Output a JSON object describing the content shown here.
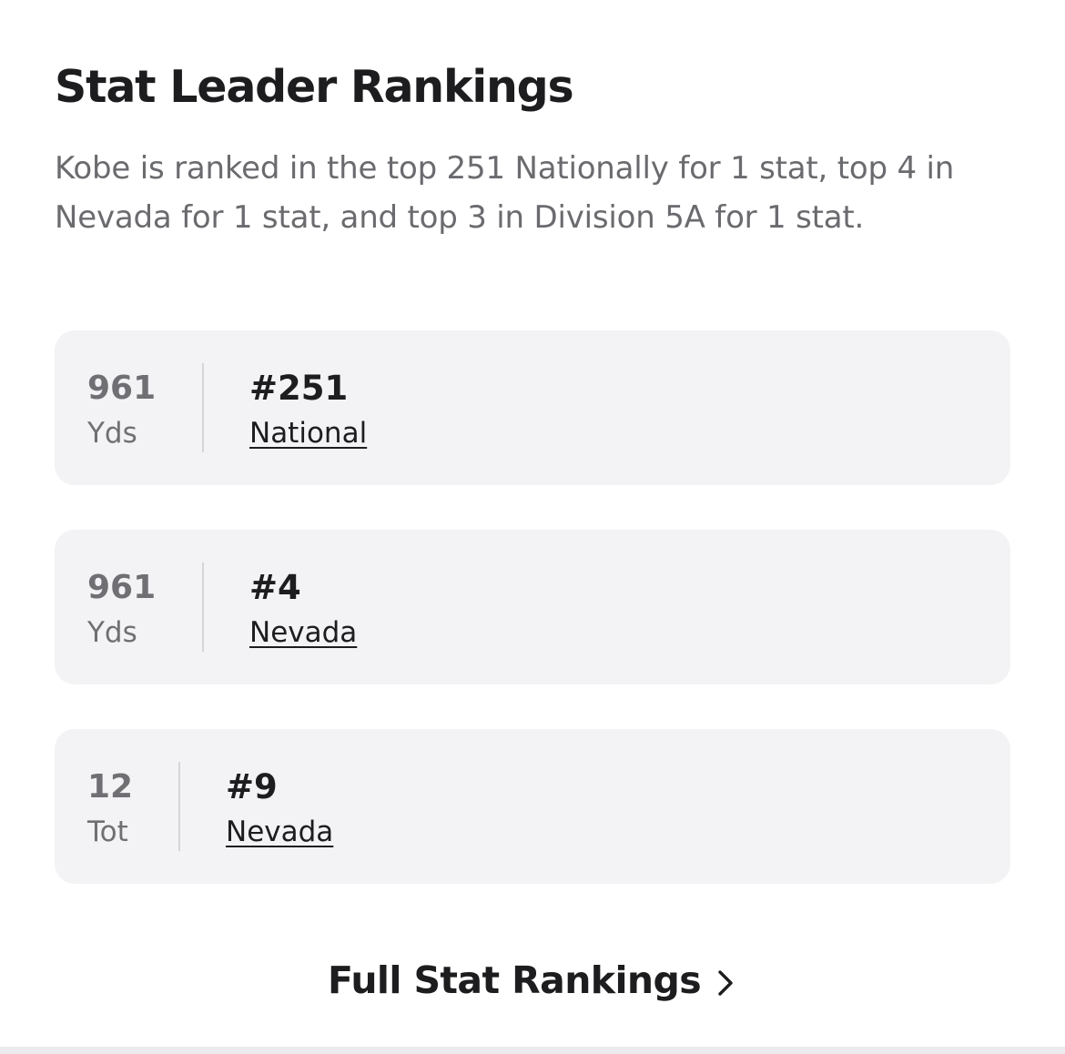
{
  "section": {
    "title": "Stat Leader Rankings",
    "description": "Kobe is ranked in the top 251 Nationally for 1 stat, top 4 in Nevada for 1 stat, and top 3 in Division 5A for 1 stat."
  },
  "rankings": [
    {
      "value": "961",
      "unit": "Yds",
      "rank": "#251",
      "scope": "National"
    },
    {
      "value": "961",
      "unit": "Yds",
      "rank": "#4",
      "scope": "Nevada"
    },
    {
      "value": "12",
      "unit": "Tot",
      "rank": "#9",
      "scope": "Nevada"
    }
  ],
  "footer": {
    "link_label": "Full Stat Rankings",
    "link_icon": "chevron-right-icon"
  }
}
